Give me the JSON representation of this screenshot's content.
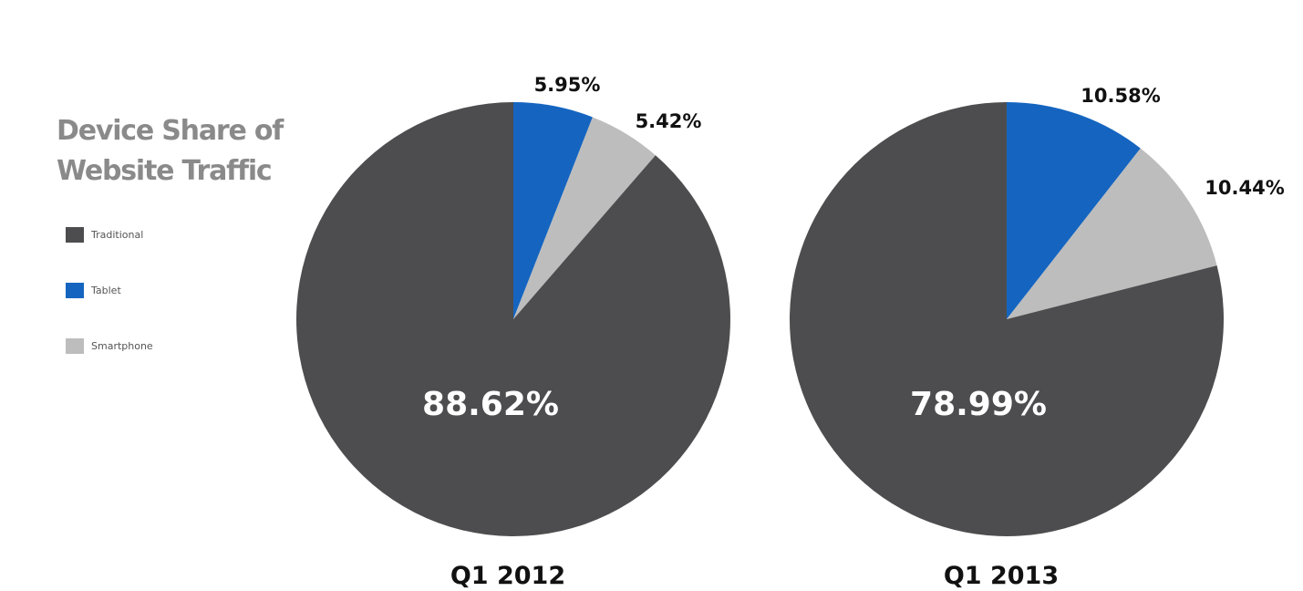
{
  "title_line1": "Device Share of",
  "title_line2": "Website Traffic",
  "legend": [
    {
      "label": "Traditional",
      "color": "#4d4d4f"
    },
    {
      "label": "Tablet",
      "color": "#1565c0"
    },
    {
      "label": "Smartphone",
      "color": "#bdbdbd"
    }
  ],
  "chart_data": [
    {
      "type": "pie",
      "label": "Q1 2012",
      "slices": [
        {
          "name": "Tablet",
          "value": 5.95,
          "value_label": "5.95%",
          "color": "#1565c0"
        },
        {
          "name": "Smartphone",
          "value": 5.42,
          "value_label": "5.42%",
          "color": "#bdbdbd"
        },
        {
          "name": "Traditional",
          "value": 88.62,
          "value_label": "88.62%",
          "color": "#4d4d4f"
        }
      ]
    },
    {
      "type": "pie",
      "label": "Q1 2013",
      "slices": [
        {
          "name": "Tablet",
          "value": 10.58,
          "value_label": "10.58%",
          "color": "#1565c0"
        },
        {
          "name": "Smartphone",
          "value": 10.44,
          "value_label": "10.44%",
          "color": "#bdbdbd"
        },
        {
          "name": "Traditional",
          "value": 78.99,
          "value_label": "78.99%",
          "color": "#4d4d4f"
        }
      ]
    }
  ]
}
